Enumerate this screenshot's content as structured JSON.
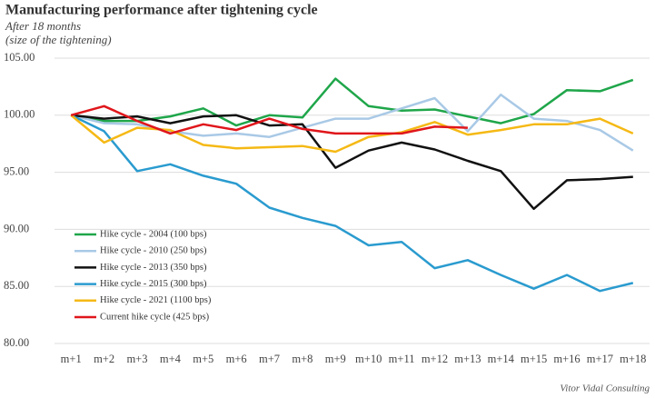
{
  "chart_data": {
    "type": "line",
    "title": "Manufacturing performance after tightening cycle",
    "subtitle": "After 18 months",
    "subtitle2": "(size of the tightening)",
    "source": "Vitor Vidal Consulting",
    "categories": [
      "m+1",
      "m+2",
      "m+3",
      "m+4",
      "m+5",
      "m+6",
      "m+7",
      "m+8",
      "m+9",
      "m+10",
      "m+11",
      "m+12",
      "m+13",
      "m+14",
      "m+15",
      "m+16",
      "m+17",
      "m+18"
    ],
    "series": [
      {
        "name": "Hike cycle - 2004 (100 bps)",
        "color": "#1fa64a",
        "values": [
          100,
          99.5,
          99.5,
          99.9,
          100.6,
          99.1,
          100.0,
          99.8,
          103.2,
          100.8,
          100.4,
          100.5,
          99.9,
          99.3,
          100.1,
          102.2,
          102.1,
          103.1
        ]
      },
      {
        "name": "Hike cycle - 2010 (250 bps)",
        "color": "#a9c9e6",
        "values": [
          100,
          99.3,
          99.2,
          98.6,
          98.2,
          98.4,
          98.1,
          98.9,
          99.7,
          99.7,
          100.6,
          101.5,
          98.6,
          101.8,
          99.7,
          99.5,
          98.7,
          96.9
        ]
      },
      {
        "name": "Hike cycle - 2013 (350 bps)",
        "color": "#111111",
        "values": [
          100,
          99.7,
          99.9,
          99.3,
          99.9,
          100.0,
          99.1,
          99.2,
          95.4,
          96.9,
          97.6,
          97.0,
          96.0,
          95.1,
          91.8,
          94.3,
          94.4,
          94.6
        ]
      },
      {
        "name": "Hike cycle - 2015 (300 bps)",
        "color": "#2a9bcf",
        "values": [
          100,
          98.6,
          95.1,
          95.7,
          94.7,
          94.0,
          91.9,
          91.0,
          90.3,
          88.6,
          88.9,
          86.6,
          87.3,
          86.0,
          84.8,
          86.0,
          84.6,
          85.3
        ]
      },
      {
        "name": "Hike cycle - 2021 (1100 bps)",
        "color": "#f5b915",
        "values": [
          100,
          97.6,
          98.9,
          98.7,
          97.4,
          97.1,
          97.2,
          97.3,
          96.8,
          98.1,
          98.5,
          99.4,
          98.3,
          98.7,
          99.2,
          99.2,
          99.7,
          98.4
        ]
      },
      {
        "name": "Current hike cycle (425 bps)",
        "color": "#e0161b",
        "values": [
          100,
          100.8,
          99.5,
          98.4,
          99.2,
          98.7,
          99.7,
          98.8,
          98.4,
          98.4,
          98.4,
          99.0,
          98.9,
          null,
          null,
          null,
          null,
          null
        ]
      }
    ],
    "ylim": [
      80,
      105
    ],
    "yticks": [
      {
        "value": 80,
        "label": "80.00"
      },
      {
        "value": 85,
        "label": "85.00"
      },
      {
        "value": 90,
        "label": "90.00"
      },
      {
        "value": 95,
        "label": "95.00"
      },
      {
        "value": 100,
        "label": "100.00"
      },
      {
        "value": 105,
        "label": "105.00"
      }
    ],
    "grid": true,
    "legend": "left"
  }
}
